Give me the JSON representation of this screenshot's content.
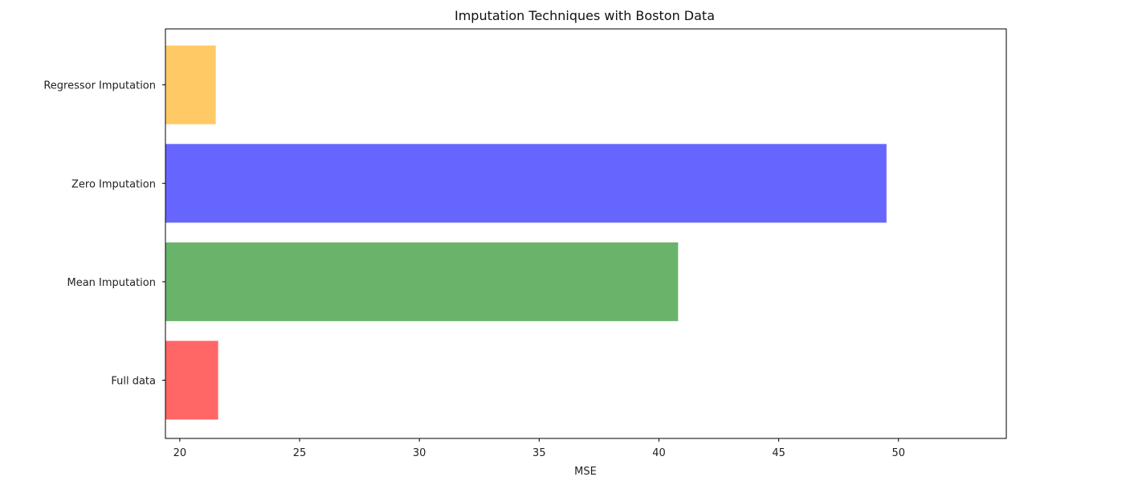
{
  "chart_data": {
    "type": "bar",
    "orientation": "horizontal",
    "title": "Imputation Techniques with Boston Data",
    "xlabel": "MSE",
    "ylabel": "",
    "categories": [
      "Full data",
      "Mean Imputation",
      "Zero Imputation",
      "Regressor Imputation"
    ],
    "values": [
      21.6,
      40.8,
      49.5,
      21.5
    ],
    "colors": [
      "#ff6666",
      "#69b36a",
      "#6666ff",
      "#ffc966"
    ],
    "xlim": [
      19.4,
      54.5
    ],
    "xticks": [
      20,
      25,
      30,
      35,
      40,
      45,
      50
    ],
    "grid": false,
    "legend": "none"
  }
}
